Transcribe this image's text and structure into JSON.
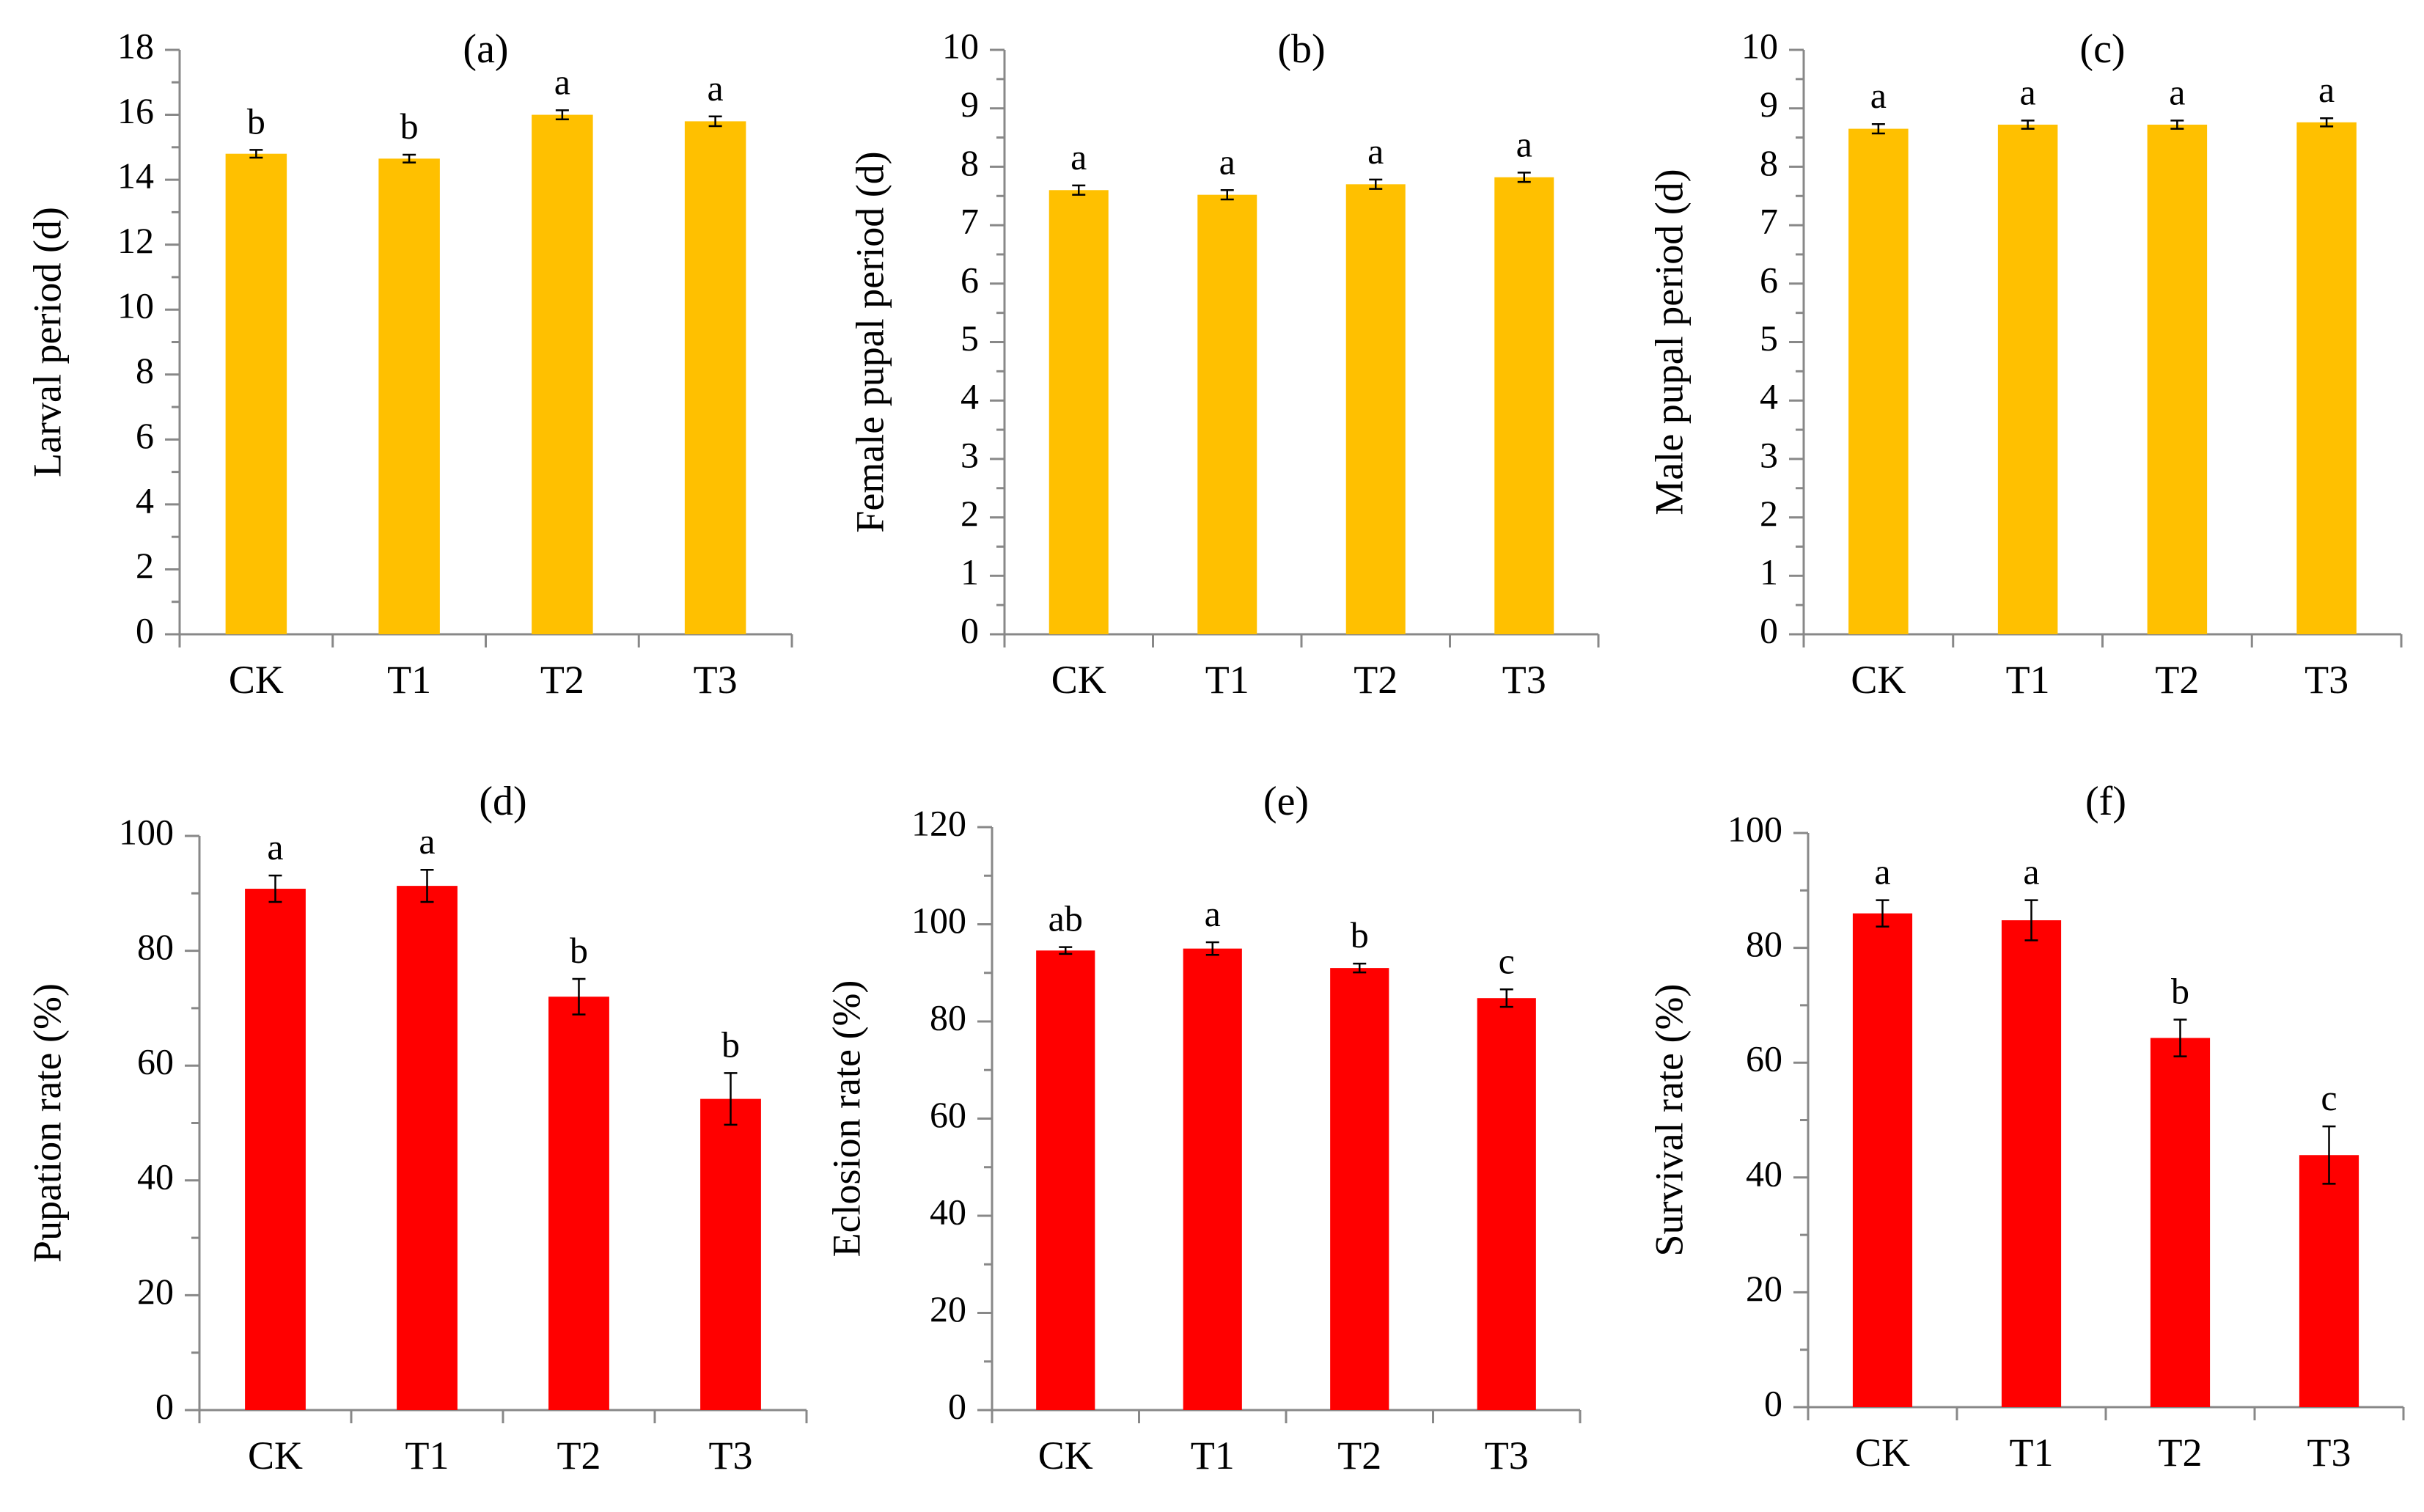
{
  "colors": {
    "developmental_bars": "#FFC000",
    "rate_bars": "#FF0000",
    "axis": "#888888",
    "error_bars": "#000000"
  },
  "chart_data": [
    {
      "type": "bar",
      "title": "(a)",
      "xlabel": "",
      "ylabel": "Larval period (d)",
      "categories": [
        "CK",
        "T1",
        "T2",
        "T3"
      ],
      "values": [
        14.8,
        14.65,
        16.0,
        15.8
      ],
      "errors": [
        0.12,
        0.12,
        0.14,
        0.15
      ],
      "significance": [
        "b",
        "b",
        "a",
        "a"
      ],
      "ylim": [
        0,
        18
      ],
      "ytick_step": 2,
      "yticks": [
        "0",
        "2",
        "4",
        "6",
        "8",
        "10",
        "12",
        "14",
        "16",
        "18"
      ],
      "bar_color": "#FFC000"
    },
    {
      "type": "bar",
      "title": "(b)",
      "xlabel": "",
      "ylabel": "Female pupal period (d)",
      "categories": [
        "CK",
        "T1",
        "T2",
        "T3"
      ],
      "values": [
        7.6,
        7.52,
        7.7,
        7.82
      ],
      "errors": [
        0.08,
        0.08,
        0.08,
        0.08
      ],
      "significance": [
        "a",
        "a",
        "a",
        "a"
      ],
      "ylim": [
        0,
        10
      ],
      "ytick_step": 1,
      "yticks": [
        "0",
        "1",
        "2",
        "3",
        "4",
        "5",
        "6",
        "7",
        "8",
        "9",
        "10"
      ],
      "bar_color": "#FFC000"
    },
    {
      "type": "bar",
      "title": "(c)",
      "xlabel": "",
      "ylabel": "Male pupal period (d)",
      "categories": [
        "CK",
        "T1",
        "T2",
        "T3"
      ],
      "values": [
        8.65,
        8.72,
        8.72,
        8.76
      ],
      "errors": [
        0.08,
        0.07,
        0.07,
        0.07
      ],
      "significance": [
        "a",
        "a",
        "a",
        "a"
      ],
      "ylim": [
        0,
        10
      ],
      "ytick_step": 1,
      "yticks": [
        "0",
        "1",
        "2",
        "3",
        "4",
        "5",
        "6",
        "7",
        "8",
        "9",
        "10"
      ],
      "bar_color": "#FFC000"
    },
    {
      "type": "bar",
      "title": "(d)",
      "xlabel": "",
      "ylabel": "Pupation rate (%)",
      "categories": [
        "CK",
        "T1",
        "T2",
        "T3"
      ],
      "values": [
        90.8,
        91.3,
        72.0,
        54.2
      ],
      "errors": [
        2.3,
        2.8,
        3.1,
        4.5
      ],
      "significance": [
        "a",
        "a",
        "b",
        "b"
      ],
      "ylim": [
        0,
        100
      ],
      "ytick_step": 20,
      "yticks": [
        "0",
        "20",
        "40",
        "60",
        "80",
        "100"
      ],
      "bar_color": "#FF0000"
    },
    {
      "type": "bar",
      "title": "(e)",
      "xlabel": "",
      "ylabel": "Eclosion rate (%)",
      "categories": [
        "CK",
        "T1",
        "T2",
        "T3"
      ],
      "values": [
        94.6,
        95.0,
        91.0,
        84.8
      ],
      "errors": [
        0.7,
        1.3,
        0.9,
        1.8
      ],
      "significance": [
        "ab",
        "a",
        "b",
        "c"
      ],
      "ylim": [
        0,
        120
      ],
      "ytick_step": 20,
      "yticks": [
        "0",
        "20",
        "40",
        "60",
        "80",
        "100",
        "120"
      ],
      "bar_color": "#FF0000"
    },
    {
      "type": "bar",
      "title": "(f)",
      "xlabel": "",
      "ylabel": "Survival rate (%)",
      "categories": [
        "CK",
        "T1",
        "T2",
        "T3"
      ],
      "values": [
        86.0,
        84.8,
        64.3,
        43.9
      ],
      "errors": [
        2.3,
        3.5,
        3.2,
        5.0
      ],
      "significance": [
        "a",
        "a",
        "b",
        "c"
      ],
      "ylim": [
        0,
        100
      ],
      "ytick_step": 20,
      "yticks": [
        "0",
        "20",
        "40",
        "60",
        "80",
        "100"
      ],
      "bar_color": "#FF0000"
    }
  ]
}
